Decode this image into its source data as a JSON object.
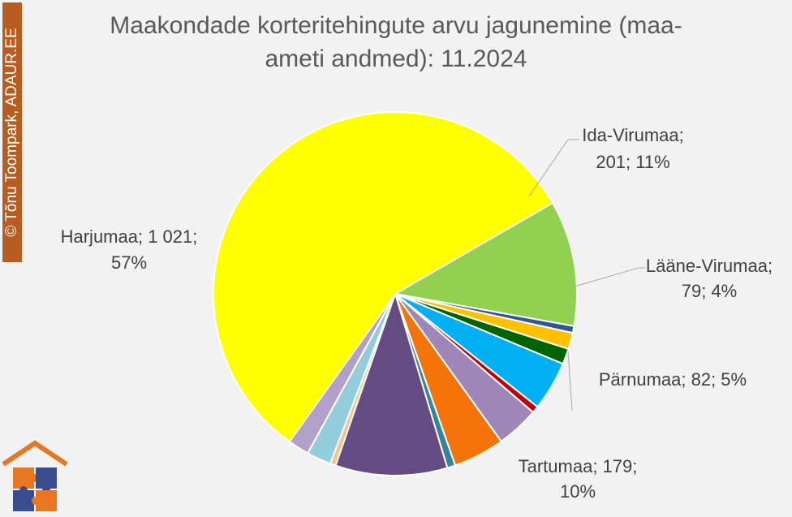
{
  "chart_data": {
    "type": "pie",
    "title": "Maakondade korteritehingute arvu jagunemine (maa-ameti andmed): 11.2024",
    "title_lines": [
      "Maakondade korteritehingute arvu jagunemine (maa-",
      "ameti andmed): 11.2024"
    ],
    "slices": [
      {
        "name": "Ida-Virumaa",
        "value": 201,
        "percent": 11,
        "color": "#92d050"
      },
      {
        "value": 11,
        "color": "#2f5597"
      },
      {
        "value": 26,
        "color": "#ffc000"
      },
      {
        "value": 25,
        "color": "#006400"
      },
      {
        "name": "Lääne-Virumaa",
        "value": 79,
        "percent": 4,
        "color": "#00b0f0"
      },
      {
        "value": 11,
        "color": "#c00000"
      },
      {
        "value": 68,
        "color": "#9e86b8"
      },
      {
        "name": "Pärnumaa",
        "value": 82,
        "percent": 5,
        "color": "#f4740a"
      },
      {
        "value": 13,
        "color": "#31869b"
      },
      {
        "name": "Tartumaa",
        "value": 179,
        "percent": 10,
        "color": "#654b83"
      },
      {
        "value": 9,
        "color": "#fac090"
      },
      {
        "value": 39,
        "color": "#92cddc"
      },
      {
        "value": 34,
        "color": "#b1a0c7"
      },
      {
        "name": "Harjumaa",
        "value": 1021,
        "percent": 57,
        "color": "#ffff00"
      }
    ],
    "labels": {
      "ida_virumaa": [
        "Ida-Virumaa;",
        "201; 11%"
      ],
      "laane_virumaa": [
        "Lääne-Virumaa;",
        "79; 4%"
      ],
      "parnumaa": [
        "Pärnumaa; 82; 5%"
      ],
      "tartumaa": [
        "Tartumaa; 179;",
        "10%"
      ],
      "harjumaa": [
        "Harjumaa; 1 021;",
        "57%"
      ]
    }
  },
  "credit": {
    "text": "© Tõnu Toompark, ADAUR.EE",
    "color": "#b85c1f"
  },
  "colors": {
    "background": "#f2f2f2",
    "title": "#595959",
    "labels": "#404040",
    "leader_lines": "#a6a6a6"
  }
}
